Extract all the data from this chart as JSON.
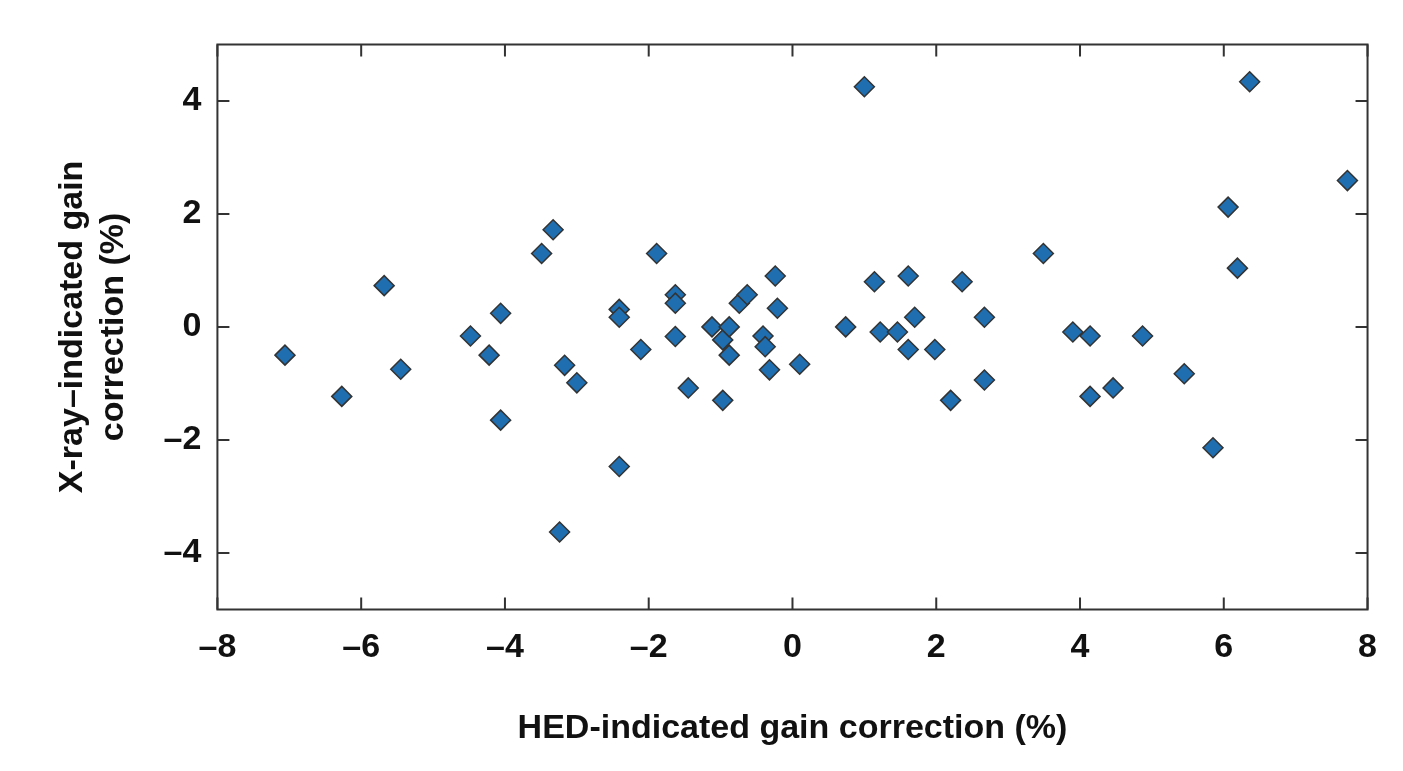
{
  "chart_data": {
    "type": "scatter",
    "xlabel": "HED-indicated gain correction (%)",
    "ylabel": "X-ray–indicated gain correction (%)",
    "xlim": [
      -8,
      8
    ],
    "xticks": [
      {
        "value": -8,
        "label": "–8"
      },
      {
        "value": -6,
        "label": "–6"
      },
      {
        "value": -4,
        "label": "–4"
      },
      {
        "value": -2,
        "label": "–2"
      },
      0,
      2,
      4,
      6,
      8
    ],
    "ylim": [
      -5,
      5
    ],
    "yticks": [
      {
        "value": -4,
        "label": "–4"
      },
      {
        "value": -2,
        "label": "–2"
      },
      0,
      2,
      4
    ],
    "grid": false,
    "legend": false,
    "marker": "diamond",
    "series": [
      {
        "color": "#1f6eb0",
        "x": [
          -7.06,
          -6.27,
          -5.68,
          -5.45,
          -4.48,
          -4.22,
          -4.06,
          -4.06,
          -3.49,
          -3.33,
          -3.17,
          -3.24,
          -3.0,
          -2.41,
          -2.41,
          -2.41,
          -2.11,
          -1.89,
          -1.63,
          -1.63,
          -1.63,
          -1.45,
          -1.12,
          -0.97,
          -0.88,
          -0.88,
          -0.97,
          -0.74,
          -0.63,
          -0.41,
          -0.38,
          -0.32,
          -0.24,
          -0.21,
          0.1,
          0.74,
          1.0,
          1.14,
          1.22,
          1.46,
          1.61,
          1.61,
          1.7,
          1.98,
          2.2,
          2.36,
          2.67,
          2.67,
          3.49,
          3.9,
          4.14,
          4.14,
          4.46,
          4.87,
          5.45,
          5.85,
          6.06,
          6.19,
          6.36,
          7.72
        ],
        "values": [
          -0.5,
          -1.23,
          0.73,
          -0.75,
          -0.16,
          -0.5,
          0.24,
          -1.65,
          1.3,
          1.72,
          -0.68,
          -3.63,
          -0.99,
          0.31,
          0.17,
          -2.47,
          -0.4,
          1.3,
          0.57,
          0.42,
          -0.17,
          -1.08,
          0.0,
          -0.23,
          0.0,
          -0.5,
          -1.3,
          0.42,
          0.57,
          -0.16,
          -0.35,
          -0.76,
          0.9,
          0.33,
          -0.66,
          0.0,
          4.25,
          0.8,
          -0.09,
          -0.09,
          0.9,
          -0.4,
          0.17,
          -0.4,
          -1.3,
          0.8,
          0.17,
          -0.94,
          1.3,
          -0.09,
          -0.16,
          -1.23,
          -1.08,
          -0.16,
          -0.83,
          -2.14,
          2.12,
          1.04,
          4.34,
          2.59
        ]
      }
    ]
  }
}
